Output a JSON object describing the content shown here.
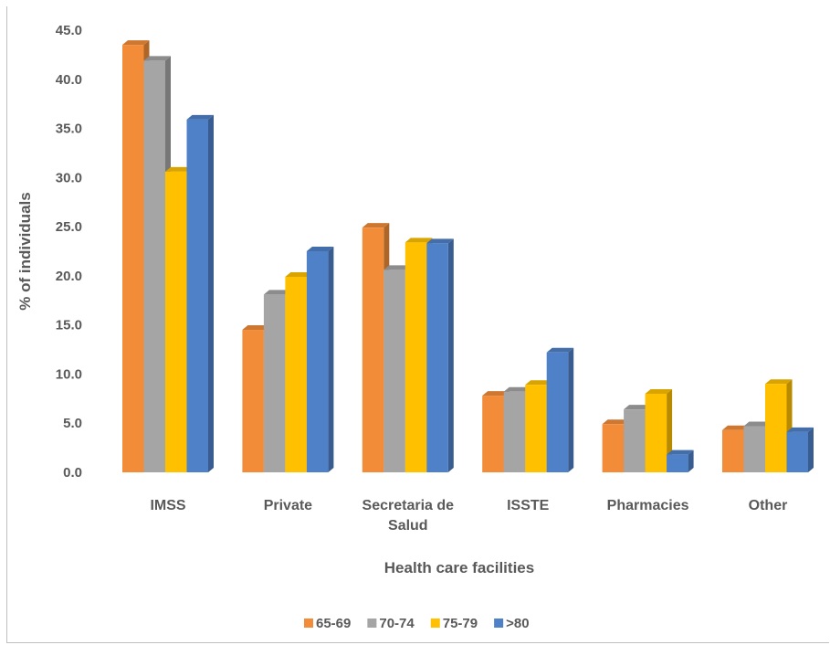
{
  "chart_data": {
    "type": "bar",
    "title": "",
    "xlabel": "Health care facilities",
    "ylabel": "% of individuals",
    "ylim": [
      0,
      45
    ],
    "yticks": [
      "0.0",
      "5.0",
      "10.0",
      "15.0",
      "20.0",
      "25.0",
      "30.0",
      "35.0",
      "40.0",
      "45.0"
    ],
    "categories": [
      "IMSS",
      "Private",
      "Secretaria de Salud",
      "ISSTE",
      "Pharmacies",
      "Other"
    ],
    "series": [
      {
        "name": "65-69",
        "color": "#F28C38",
        "values": [
          43.5,
          14.5,
          24.9,
          7.8,
          4.9,
          4.3
        ]
      },
      {
        "name": "70-74",
        "color": "#A5A5A5",
        "values": [
          41.9,
          18.1,
          20.6,
          8.2,
          6.4,
          4.7
        ]
      },
      {
        "name": "75-79",
        "color": "#FFC000",
        "values": [
          30.6,
          19.9,
          23.4,
          8.9,
          8.0,
          9.0
        ]
      },
      {
        "name": ">80",
        "color": "#4F81C8",
        "values": [
          35.9,
          22.5,
          23.3,
          12.2,
          1.8,
          4.1
        ]
      }
    ],
    "grid": false,
    "legend": "bottom",
    "style": "3d-clustered-column"
  }
}
